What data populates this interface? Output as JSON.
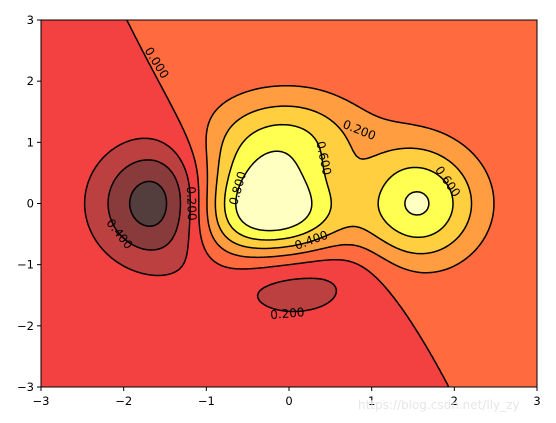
{
  "chart_data": {
    "type": "contour",
    "title": "",
    "xlabel": "",
    "ylabel": "",
    "xlim": [
      -3,
      3
    ],
    "ylim": [
      -3,
      3
    ],
    "x_ticks": [
      "−3",
      "−2",
      "−1",
      "0",
      "1",
      "2",
      "3"
    ],
    "y_ticks": [
      "−3",
      "−2",
      "−1",
      "0",
      "1",
      "2",
      "3"
    ],
    "function": "(1 - x/2 + x^5 + y^3) * exp(-x^2 - y^2)",
    "levels": [
      -0.6,
      -0.4,
      -0.2,
      0.0,
      0.2,
      0.4,
      0.6,
      0.8,
      1.0
    ],
    "colormap": "hot",
    "fill_alpha": 0.75,
    "fill_colors": [
      "#533d3d",
      "#893b3b",
      "#bd4040",
      "#f34040",
      "#ff6b3f",
      "#ff9d40",
      "#ffcf40",
      "#ffff51",
      "#ffffc2"
    ],
    "line_color": "#000000",
    "negative_linestyle": "dashed",
    "contour_labels": [
      {
        "text": "0.000",
        "x": -1.6,
        "y": 2.3,
        "rotation": 58
      },
      {
        "text": "0.200",
        "x": 0.85,
        "y": 1.2,
        "rotation": 22
      },
      {
        "text": "0.600",
        "x": 0.42,
        "y": 0.74,
        "rotation": 78
      },
      {
        "text": "0.800",
        "x": -0.62,
        "y": 0.25,
        "rotation": -74
      },
      {
        "text": "0.600",
        "x": 1.92,
        "y": 0.36,
        "rotation": 55
      },
      {
        "text": "0.400",
        "x": 0.27,
        "y": -0.6,
        "rotation": -20
      },
      {
        "text": "0.200",
        "x": -1.18,
        "y": 0.0,
        "rotation": 88
      },
      {
        "text": "0.400",
        "x": -2.05,
        "y": -0.5,
        "rotation": 52
      },
      {
        "text": "0.200",
        "x": -0.02,
        "y": -1.8,
        "rotation": -5
      }
    ]
  },
  "watermark": "https://blog.csdn.net/lly_zy"
}
